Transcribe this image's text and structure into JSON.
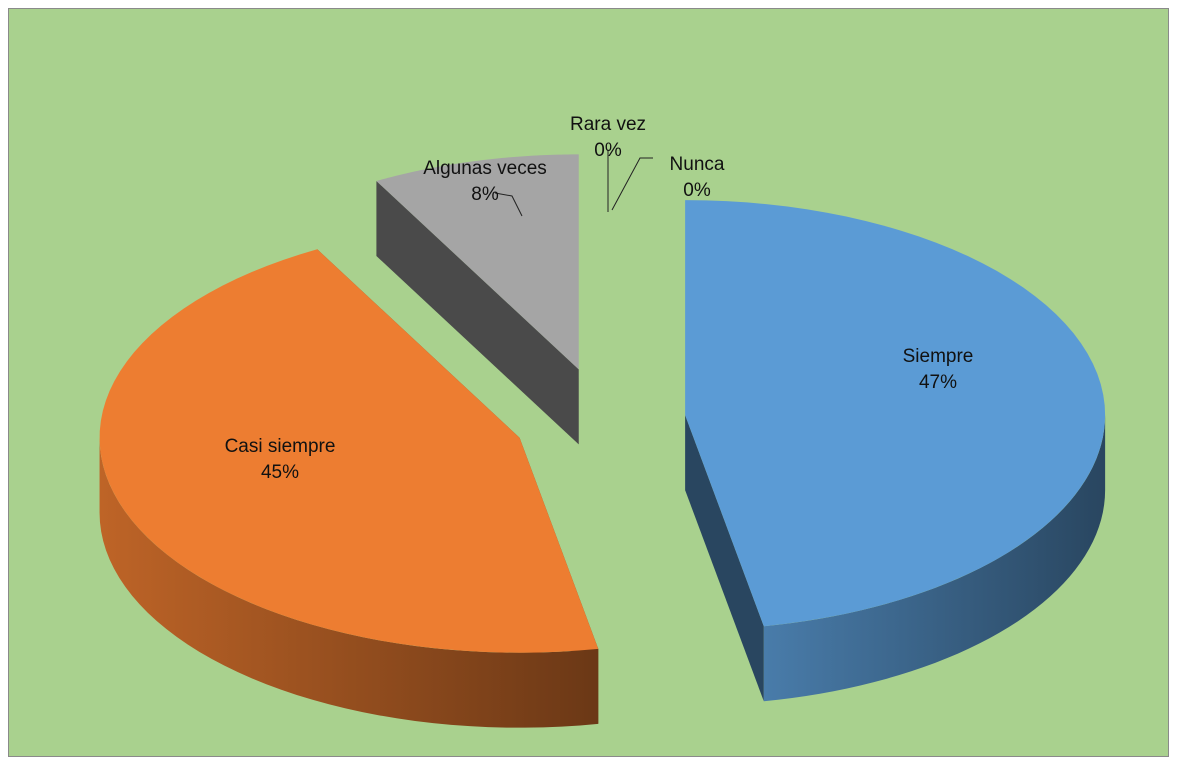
{
  "chart_data": {
    "type": "pie3d",
    "categories": [
      "Siempre",
      "Casi siempre",
      "Algunas veces",
      "Rara vez",
      "Nunca"
    ],
    "values": [
      47,
      45,
      8,
      0,
      0
    ],
    "value_labels": [
      "47%",
      "45%",
      "8%",
      "0%",
      "0%"
    ],
    "colors": [
      "#5b9bd5",
      "#ed7d31",
      "#a5a5a5",
      "#ffc000",
      "#4472c4"
    ],
    "background": "#a9d18e"
  }
}
